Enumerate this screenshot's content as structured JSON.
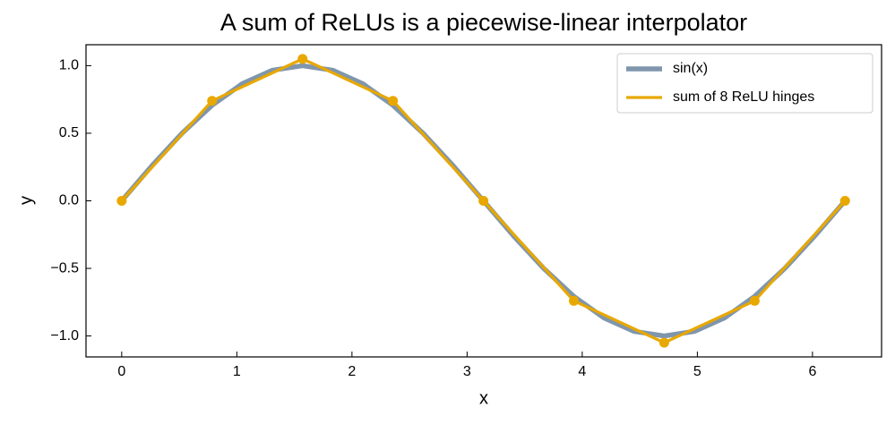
{
  "chart_data": {
    "type": "line",
    "title": "A sum of ReLUs is a piecewise-linear interpolator",
    "xlabel": "x",
    "ylabel": "y",
    "xlim": [
      -0.31,
      6.6
    ],
    "ylim": [
      -1.155,
      1.155
    ],
    "xticks": [
      0,
      1,
      2,
      3,
      4,
      5,
      6
    ],
    "yticks": [
      {
        "value": -1.0,
        "label": "−1.0"
      },
      {
        "value": -0.5,
        "label": "−0.5"
      },
      {
        "value": 0.0,
        "label": "0.0"
      },
      {
        "value": 0.5,
        "label": "0.5"
      },
      {
        "value": 1.0,
        "label": "1.0"
      }
    ],
    "legend": "upper right",
    "series": [
      {
        "name": "sin(x)",
        "color": "#7f96ad",
        "marker": false,
        "x": [
          0,
          0.262,
          0.524,
          0.785,
          1.047,
          1.309,
          1.571,
          1.833,
          2.094,
          2.356,
          2.618,
          2.88,
          3.142,
          3.403,
          3.665,
          3.927,
          4.189,
          4.451,
          4.712,
          4.974,
          5.236,
          5.498,
          5.76,
          6.021,
          6.283
        ],
        "values": [
          0,
          0.259,
          0.5,
          0.707,
          0.866,
          0.966,
          1,
          0.966,
          0.866,
          0.707,
          0.5,
          0.259,
          0,
          -0.259,
          -0.5,
          -0.707,
          -0.866,
          -0.966,
          -1,
          -0.966,
          -0.866,
          -0.707,
          -0.5,
          -0.259,
          0
        ]
      },
      {
        "name": "sum of 8 ReLU hinges",
        "color": "#e8a800",
        "marker": true,
        "x": [
          0,
          0.785,
          1.571,
          2.356,
          3.142,
          3.927,
          4.712,
          5.498,
          6.283
        ],
        "values": [
          0,
          0.74,
          1.05,
          0.74,
          0,
          -0.74,
          -1.05,
          -0.74,
          0
        ]
      }
    ]
  }
}
